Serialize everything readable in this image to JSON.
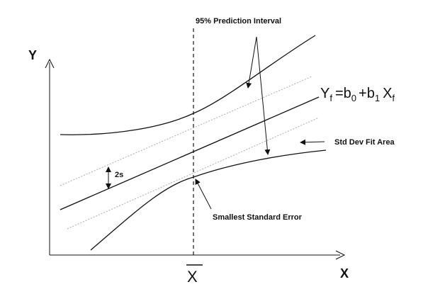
{
  "axes": {
    "y_label": "Y",
    "x_label": "X",
    "xbar_label": "X"
  },
  "annotations": {
    "prediction_interval": "95% Prediction Interval",
    "std_dev_fit_area": "Std Dev Fit Area",
    "smallest_standard_error": "Smallest Standard Error",
    "two_s": "2s"
  },
  "equation": {
    "lhs": "Y",
    "lhs_sub": "f",
    "equals": "=",
    "b0": "b",
    "b0_sub": "0",
    "plus": "+",
    "b1": "b",
    "b1_sub": "1",
    "x": "X",
    "x_sub": "f"
  },
  "colors": {
    "ink": "#111111",
    "band": "#aaaaaa"
  }
}
